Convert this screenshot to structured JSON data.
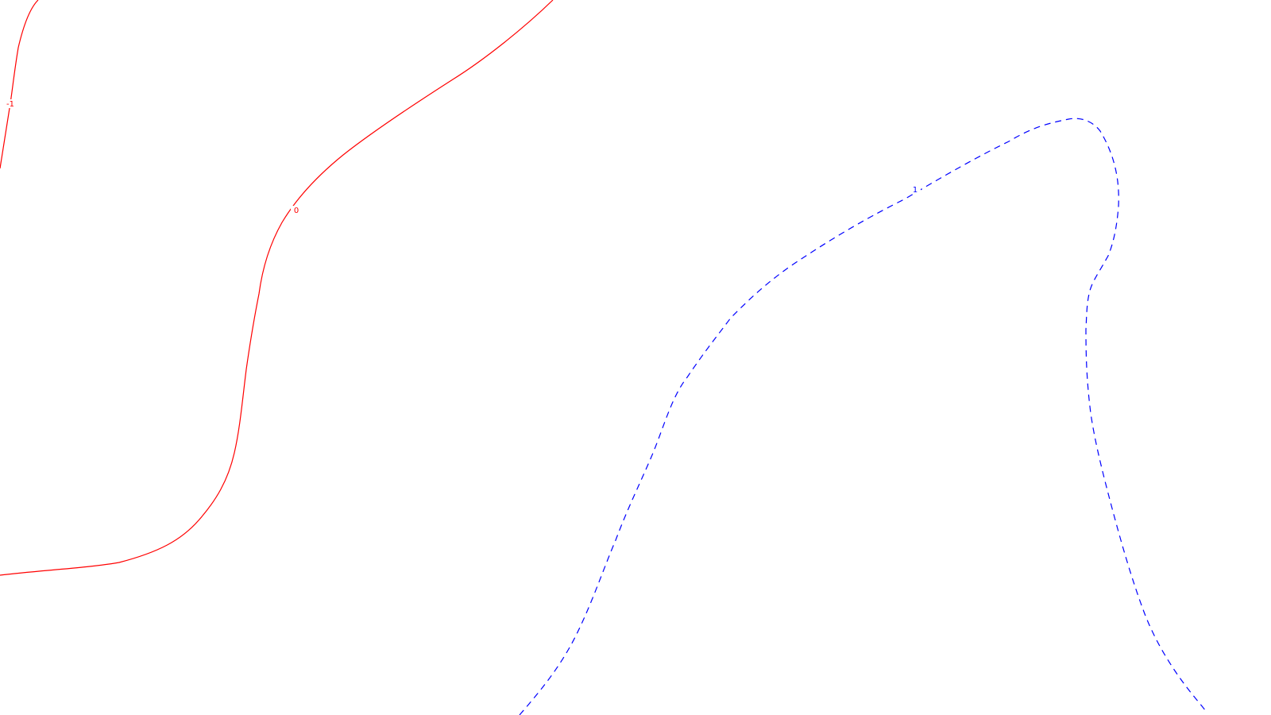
{
  "chart_data": {
    "type": "contour",
    "levels": [
      {
        "value": -1,
        "label": "-1",
        "color": "#ff0000",
        "line_style": "solid"
      },
      {
        "value": 0,
        "label": "0",
        "color": "#ff0000",
        "line_style": "solid"
      },
      {
        "value": 1,
        "label": "1",
        "color": "#0000ff",
        "line_style": "dashed"
      }
    ],
    "axes_visible": false,
    "grid": false,
    "legend": false
  }
}
